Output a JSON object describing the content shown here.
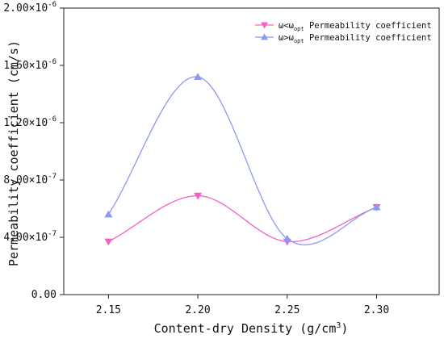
{
  "chart_data": {
    "type": "line",
    "xlabel": "Content-dry Density (g/cm",
    "xlabel_sup": "3",
    "xlabel_end": ")",
    "ylabel": "Permeability coefficient (cm/s)",
    "x": [
      2.15,
      2.2,
      2.25,
      2.3
    ],
    "x_tick_labels": [
      "2.15",
      "2.20",
      "2.25",
      "2.30"
    ],
    "xlim": [
      2.125,
      2.335
    ],
    "ylim": [
      0,
      2e-06
    ],
    "y_ticks": [
      0,
      4e-07,
      8e-07,
      1.2e-06,
      1.6e-06,
      2e-06
    ],
    "y_tick_labels": [
      {
        "mantissa": "0.00",
        "exp": ""
      },
      {
        "mantissa": "4.00×10",
        "exp": "-7"
      },
      {
        "mantissa": "8.00×10",
        "exp": "-7"
      },
      {
        "mantissa": "1.20×10",
        "exp": "-6"
      },
      {
        "mantissa": "1.60×10",
        "exp": "-6"
      },
      {
        "mantissa": "2.00×10",
        "exp": "-6"
      }
    ],
    "series": [
      {
        "name_main": "ω<ω",
        "name_sub": "opt",
        "name_rest": " Permeability coefficient",
        "marker": "triangle-down",
        "color": "#f062c8",
        "values": [
          3.7e-07,
          6.9e-07,
          3.7e-07,
          6.1e-07
        ]
      },
      {
        "name_main": "ω>ω",
        "name_sub": "opt",
        "name_rest": " Permeability coefficient",
        "marker": "triangle-up",
        "color": "#8a9af0",
        "values": [
          5.6e-07,
          1.52e-06,
          3.9e-07,
          6.1e-07
        ]
      }
    ],
    "legend_position": "top-right",
    "grid": false
  }
}
